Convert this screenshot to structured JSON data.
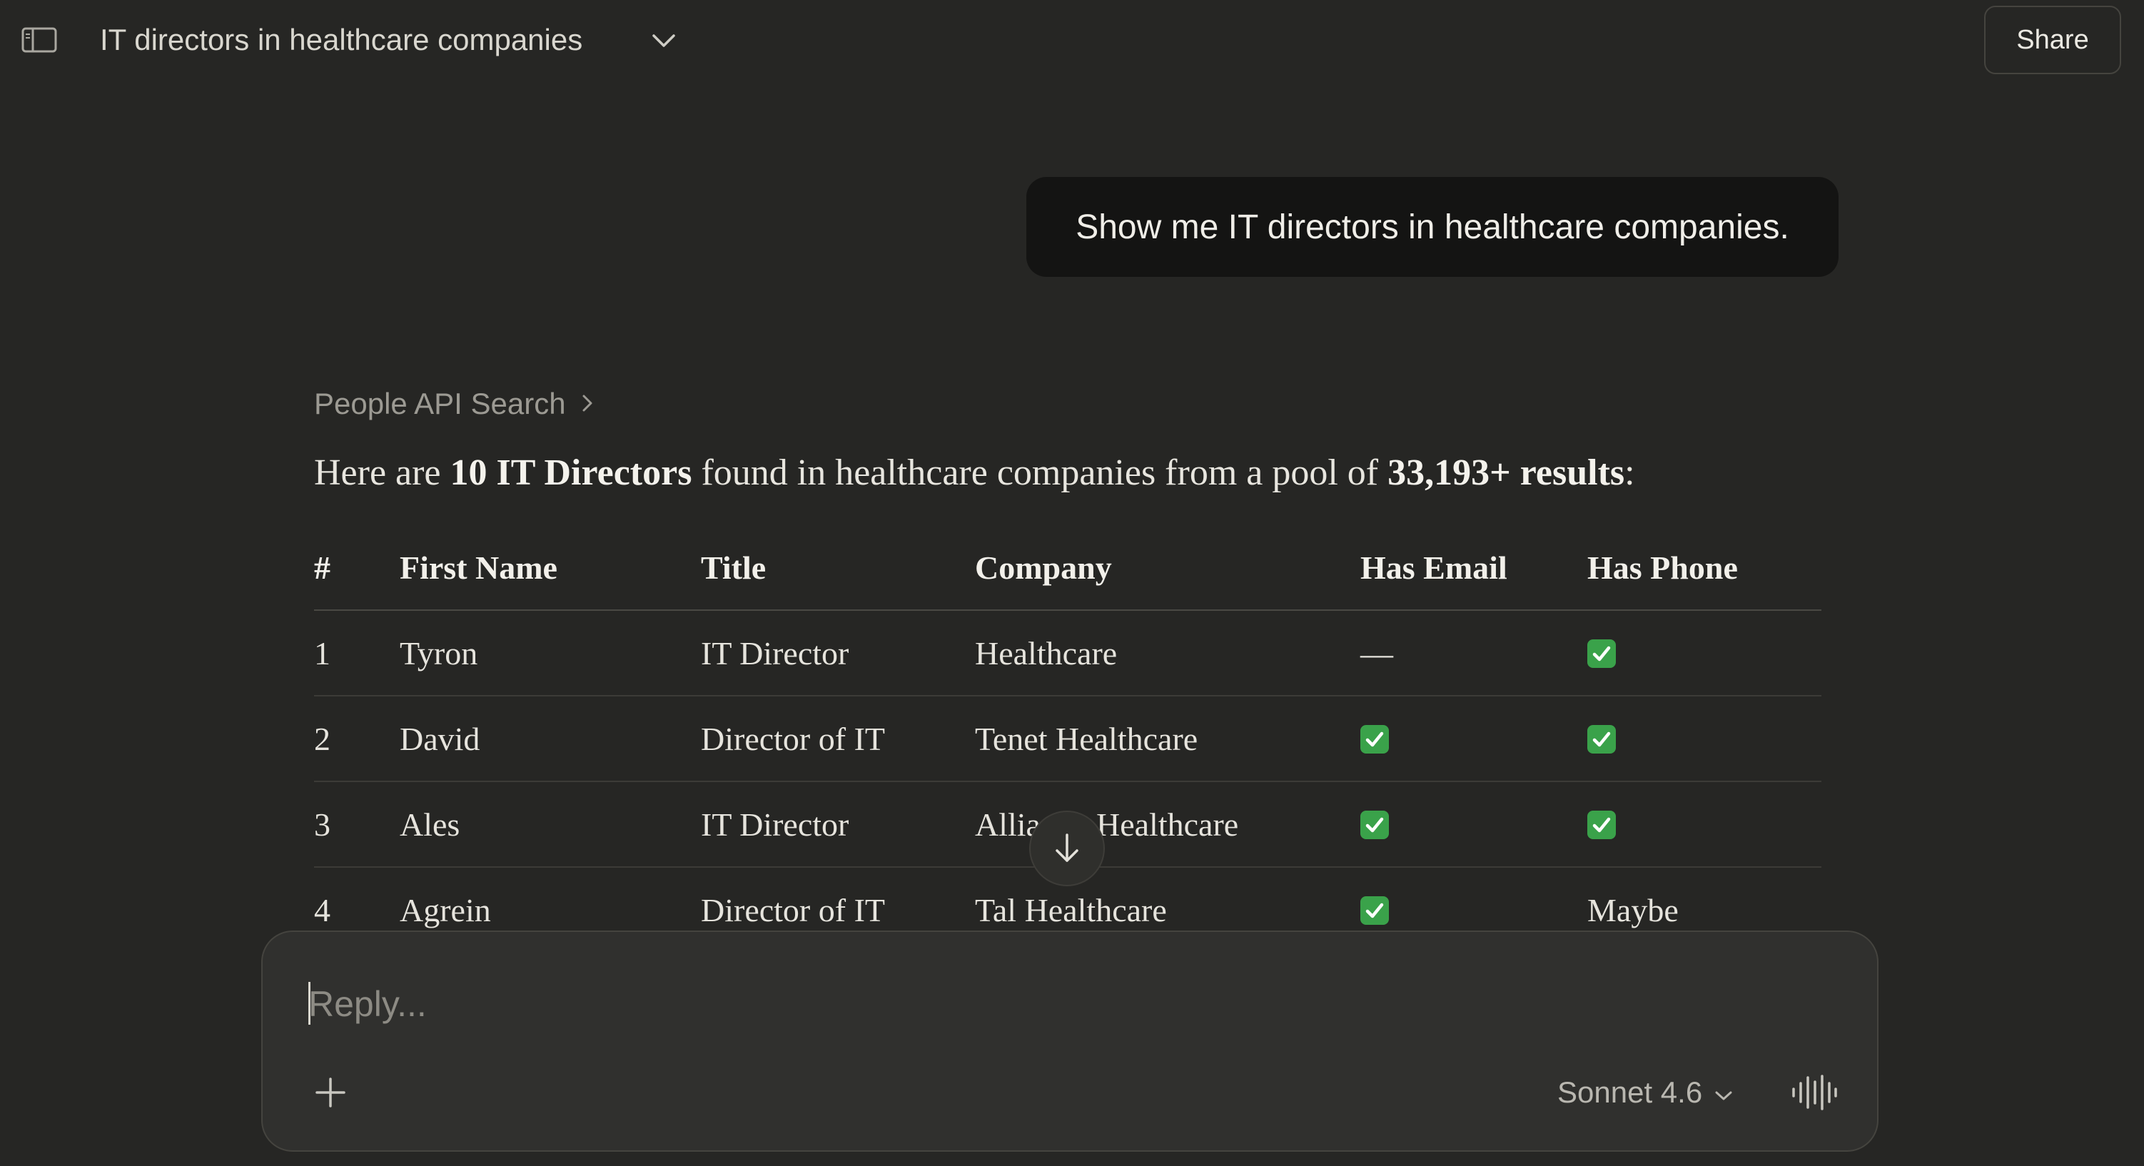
{
  "header": {
    "title": "IT directors in healthcare companies",
    "share_label": "Share",
    "icons": {
      "sidebar": "sidebar-toggle-icon",
      "title_dropdown": "chevron-down-icon"
    }
  },
  "messages": {
    "user": "Show me IT directors in healthcare companies.",
    "tool_link": "People API Search",
    "summary": {
      "prefix": "Here are ",
      "count_bold": "10 IT Directors",
      "middle": " found in healthcare companies from a pool of ",
      "pool_bold": "33,193+ results",
      "suffix": ":"
    }
  },
  "table": {
    "headers": [
      "#",
      "First Name",
      "Title",
      "Company",
      "Has Email",
      "Has Phone"
    ],
    "rows": [
      {
        "num": "1",
        "first_name": "Tyron",
        "title": "IT Director",
        "company": "Healthcare",
        "has_email": "—",
        "has_phone": "check"
      },
      {
        "num": "2",
        "first_name": "David",
        "title": "Director of IT",
        "company": "Tenet Healthcare",
        "has_email": "check",
        "has_phone": "check"
      },
      {
        "num": "3",
        "first_name": "Ales",
        "title": "IT Director",
        "company": "Allia",
        "company_tail": "Healthcare",
        "has_email": "check",
        "has_phone": "check"
      },
      {
        "num": "4",
        "first_name": "Agrein",
        "title": "Director of IT",
        "company": "Tal Healthcare",
        "has_email": "check",
        "has_phone": "Maybe"
      }
    ]
  },
  "composer": {
    "placeholder": "Reply...",
    "model_label": "Sonnet 4.6",
    "icons": {
      "add": "plus-icon",
      "model_dropdown": "chevron-down-icon",
      "voice": "voice-waveform-icon"
    }
  },
  "colors": {
    "background": "#262624",
    "user_bubble": "#141413",
    "composer": "#30302e",
    "check_green": "#3aa24a",
    "muted_text": "#9c9a93"
  }
}
